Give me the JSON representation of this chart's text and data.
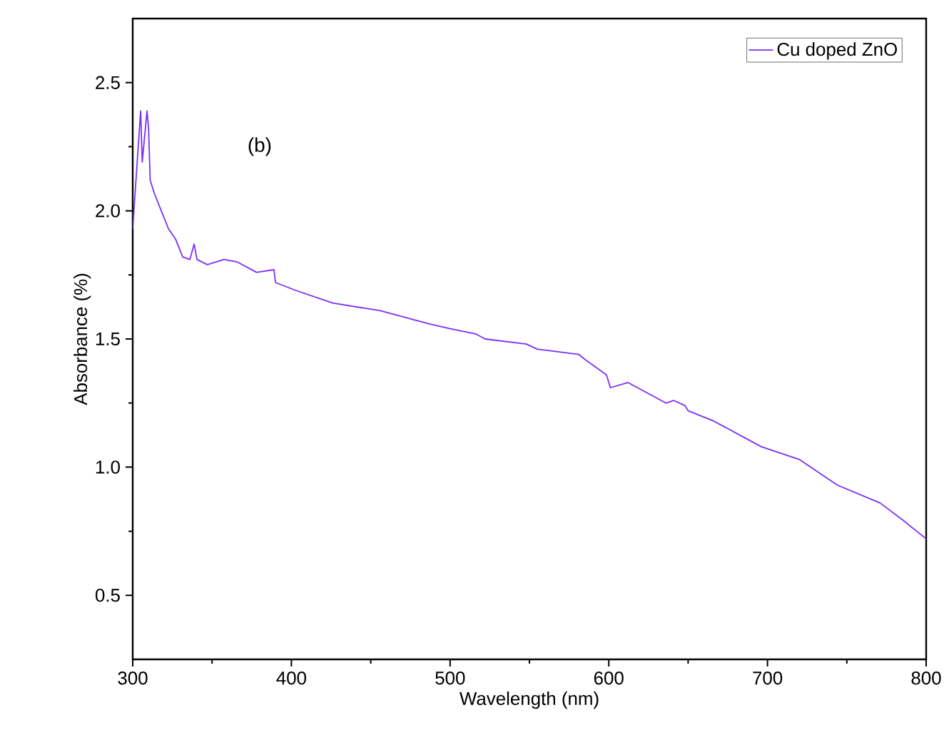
{
  "chart_data": {
    "type": "line",
    "xlabel": "Wavelength (nm)",
    "ylabel": "Absorbance (%)",
    "annotations": [
      "(b)"
    ],
    "xlim": [
      300,
      800
    ],
    "xticks": [
      300,
      400,
      500,
      600,
      700,
      800
    ],
    "ylim": [
      0.25,
      2.75
    ],
    "yticks": [
      0.5,
      {
        "value": 1,
        "label": "1.0"
      },
      1.5,
      {
        "value": 2,
        "label": "2.0"
      },
      2.5
    ],
    "legend": "top right",
    "line_style": "solid",
    "series": [
      {
        "name": "Cu doped ZnO",
        "color": "#7b2ff7",
        "x": [
          300,
          305,
          306,
          309,
          310,
          311,
          313.5,
          318,
          322.5,
          327,
          331.5,
          336,
          338.7,
          340.5,
          347,
          357.5,
          366,
          378,
          389,
          390,
          402.5,
          426,
          456,
          486,
          500,
          516,
          522,
          548,
          555,
          581,
          585,
          598.5,
          600,
          601,
          612,
          636,
          641,
          648,
          650,
          666,
          696,
          720,
          744,
          771,
          786,
          800
        ],
        "values": [
          1.93,
          2.39,
          2.19,
          2.39,
          2.32,
          2.12,
          2.07,
          2.0,
          1.93,
          1.89,
          1.82,
          1.81,
          1.87,
          1.81,
          1.79,
          1.81,
          1.8,
          1.76,
          1.77,
          1.72,
          1.69,
          1.64,
          1.61,
          1.56,
          1.54,
          1.52,
          1.5,
          1.48,
          1.46,
          1.44,
          1.42,
          1.36,
          1.33,
          1.31,
          1.33,
          1.25,
          1.26,
          1.24,
          1.22,
          1.18,
          1.08,
          1.03,
          0.93,
          0.86,
          0.79,
          0.72
        ]
      }
    ]
  }
}
